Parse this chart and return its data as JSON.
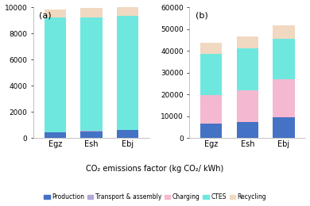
{
  "categories": [
    "Egz",
    "Esh",
    "Ebj"
  ],
  "subplot_a": {
    "label": "(a)",
    "ylim": [
      0,
      10000
    ],
    "yticks": [
      0,
      2000,
      4000,
      6000,
      8000,
      10000
    ],
    "Production": [
      400,
      500,
      600
    ],
    "Transport_assembly": [
      30,
      30,
      30
    ],
    "Charging": [
      0,
      0,
      0
    ],
    "CTES": [
      8800,
      8700,
      8700
    ],
    "Recycling": [
      600,
      700,
      900
    ]
  },
  "subplot_b": {
    "label": "(b)",
    "ylim": [
      0,
      60000
    ],
    "yticks": [
      0,
      10000,
      20000,
      30000,
      40000,
      50000,
      60000
    ],
    "Production": [
      6500,
      7200,
      9500
    ],
    "Transport_assembly": [
      0,
      0,
      0
    ],
    "Charging": [
      13000,
      14800,
      17500
    ],
    "CTES": [
      19000,
      19000,
      18500
    ],
    "Recycling": [
      5000,
      5400,
      6000
    ]
  },
  "colors": {
    "Production": "#4472c4",
    "Transport_assembly": "#b4a7d6",
    "Charging": "#f4b8d0",
    "CTES": "#6ee8df",
    "Recycling": "#f0d9c0"
  },
  "legend_labels": [
    "Production",
    "Transport & assembly",
    "Charging",
    "CTES",
    "Recycling"
  ],
  "xlabel": "CO₂ emissions factor (kg CO₂/ kWh)"
}
